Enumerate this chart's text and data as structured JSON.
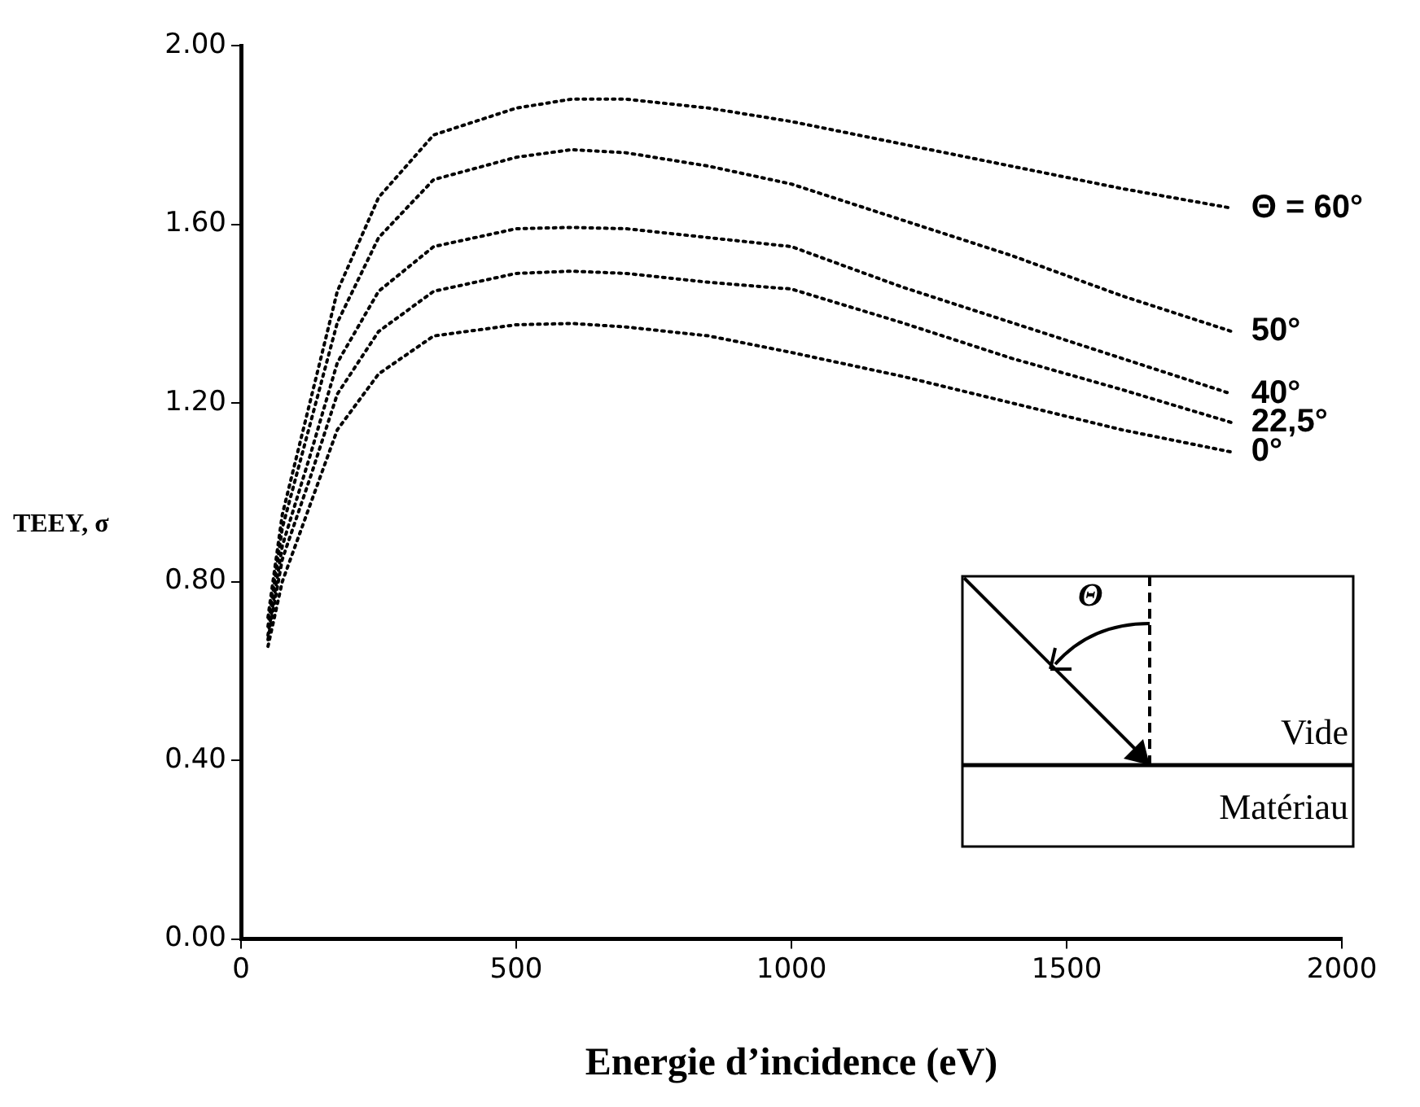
{
  "chart_data": {
    "type": "line",
    "xlabel": "Energie d’incidence (eV)",
    "ylabel": "TEEY, σ",
    "xlim": [
      0,
      2000
    ],
    "xticks": [
      0,
      500,
      1000,
      1500,
      2000
    ],
    "ylim": [
      0,
      2
    ],
    "yticks": [
      {
        "value": 0,
        "label": "0.00"
      },
      {
        "value": 0.4,
        "label": "0.40"
      },
      {
        "value": 0.8,
        "label": "0.80"
      },
      {
        "value": 1.2,
        "label": "1.20"
      },
      {
        "value": 1.6,
        "label": "1.60"
      },
      {
        "value": 2,
        "label": "2.00"
      }
    ],
    "grid": false,
    "legend": false,
    "marker": "none",
    "line_style": "dotted",
    "x": [
      49,
      75,
      125,
      175,
      250,
      350,
      500,
      600,
      700,
      850,
      1000,
      1200,
      1400,
      1600,
      1800
    ],
    "series": [
      {
        "name": "Θ = 60°",
        "color": "#000000",
        "values": [
          0.72,
          0.95,
          1.2,
          1.45,
          1.66,
          1.8,
          1.86,
          1.88,
          1.88,
          1.86,
          1.83,
          1.78,
          1.73,
          1.68,
          1.636
        ]
      },
      {
        "name": "50°",
        "color": "#000000",
        "values": [
          0.7,
          0.92,
          1.15,
          1.38,
          1.57,
          1.7,
          1.75,
          1.767,
          1.76,
          1.73,
          1.69,
          1.61,
          1.53,
          1.44,
          1.36
        ]
      },
      {
        "name": "40°",
        "color": "#000000",
        "values": [
          0.68,
          0.88,
          1.08,
          1.29,
          1.45,
          1.55,
          1.59,
          1.593,
          1.59,
          1.57,
          1.55,
          1.46,
          1.38,
          1.3,
          1.22
        ]
      },
      {
        "name": "22,5°",
        "color": "#000000",
        "values": [
          0.67,
          0.85,
          1.03,
          1.22,
          1.36,
          1.45,
          1.49,
          1.495,
          1.49,
          1.47,
          1.455,
          1.38,
          1.3,
          1.23,
          1.156
        ]
      },
      {
        "name": "0°",
        "color": "#000000",
        "values": [
          0.655,
          0.8,
          0.97,
          1.14,
          1.265,
          1.35,
          1.375,
          1.378,
          1.37,
          1.35,
          1.313,
          1.26,
          1.2,
          1.14,
          1.09
        ]
      }
    ],
    "annotations": [
      "Θ",
      "Vide",
      "Matériau"
    ]
  }
}
